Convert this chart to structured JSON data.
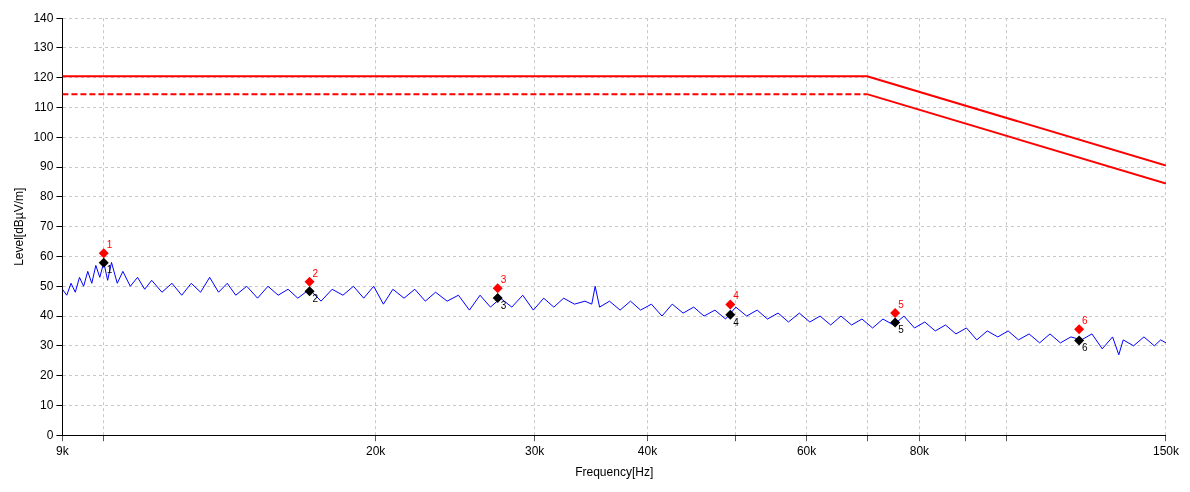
{
  "chart_data": {
    "type": "line",
    "xlabel": "Frequency[Hz]",
    "ylabel": "Level[dBµV/m]",
    "log": "x",
    "grid": true,
    "legend": false,
    "xlim": [
      9000,
      150000
    ],
    "xticks": [
      {
        "value": 9000,
        "label": "9k"
      },
      {
        "value": 10000,
        "label": null
      },
      {
        "value": 20000,
        "label": "20k"
      },
      {
        "value": 30000,
        "label": "30k"
      },
      {
        "value": 40000,
        "label": "40k"
      },
      {
        "value": 50000,
        "label": null
      },
      {
        "value": 60000,
        "label": "60k"
      },
      {
        "value": 70000,
        "label": null
      },
      {
        "value": 80000,
        "label": "80k"
      },
      {
        "value": 90000,
        "label": null
      },
      {
        "value": 100000,
        "label": null
      },
      {
        "value": 150000,
        "label": "150k"
      }
    ],
    "ylim": [
      0,
      140
    ],
    "yticks": [
      0,
      10,
      20,
      30,
      40,
      50,
      60,
      70,
      80,
      90,
      100,
      110,
      120,
      130,
      140
    ],
    "series": [
      {
        "color": "#0000ff",
        "line_style": "solid",
        "x": [
          9000,
          9100,
          9200,
          9300,
          9400,
          9500,
          9600,
          9700,
          9800,
          9900,
          10000,
          10100,
          10200,
          10350,
          10500,
          10700,
          10900,
          11100,
          11300,
          11600,
          11900,
          12200,
          12500,
          12800,
          13100,
          13400,
          13700,
          14000,
          14400,
          14800,
          15200,
          15600,
          16000,
          16400,
          16900,
          17400,
          17900,
          18400,
          18900,
          19400,
          19900,
          20400,
          20900,
          21500,
          22100,
          22700,
          23300,
          24000,
          24700,
          25400,
          26100,
          26800,
          27500,
          28300,
          29100,
          29900,
          30700,
          31500,
          32300,
          33200,
          34100,
          34700,
          35000,
          35400,
          36300,
          37300,
          38300,
          39300,
          40400,
          41500,
          42600,
          43800,
          45000,
          46200,
          47500,
          48800,
          50100,
          51500,
          52900,
          54300,
          55800,
          57300,
          58900,
          60500,
          62100,
          63800,
          65500,
          67300,
          69100,
          71000,
          72900,
          74900,
          76900,
          79000,
          81100,
          83300,
          85500,
          87800,
          90200,
          92600,
          95100,
          97700,
          100300,
          103000,
          105800,
          108700,
          111600,
          114600,
          117700,
          120900,
          124200,
          127500,
          130900,
          133000,
          134500,
          138100,
          141800,
          145600,
          148000,
          150000
        ],
        "values": [
          49,
          47,
          51,
          48,
          53,
          50,
          55,
          51,
          57,
          53,
          58,
          52,
          58,
          51,
          55,
          50,
          53,
          49,
          52,
          48,
          51,
          47,
          51,
          48,
          53,
          48,
          51,
          47,
          50,
          46,
          50,
          47,
          49,
          46,
          49,
          45,
          49,
          47,
          50,
          46,
          50,
          44,
          49,
          46,
          49,
          45,
          48,
          45,
          47,
          42,
          47,
          43,
          46,
          43,
          47,
          42,
          46,
          43,
          46,
          44,
          45,
          44,
          50,
          43,
          45,
          42,
          45,
          42,
          44,
          40,
          44,
          41,
          43,
          40,
          42,
          39,
          43,
          40,
          42,
          39,
          41,
          38,
          41,
          38,
          40,
          37,
          40,
          37,
          39,
          36,
          39,
          37,
          40,
          36,
          38,
          35,
          37,
          34,
          36,
          32,
          35,
          33,
          35,
          32,
          34,
          31,
          34,
          31,
          33,
          32,
          34,
          29,
          33,
          27,
          32,
          30,
          33,
          30,
          32,
          31
        ]
      },
      {
        "color": "#ff0000",
        "line_style": "solid",
        "x": [
          9000,
          70000,
          150000
        ],
        "values": [
          120.5,
          120.5,
          90.5
        ]
      },
      {
        "color": "#ff0000",
        "line_style": "dashed",
        "x": [
          9000,
          70000
        ],
        "values": [
          114.5,
          114.5
        ]
      },
      {
        "color": "#ff0000",
        "line_style": "solid",
        "x": [
          70000,
          150000
        ],
        "values": [
          114.5,
          84.5
        ]
      },
      {
        "type": "scatter",
        "color": "#ff0000",
        "marker": "diamond",
        "x": [
          10000,
          16900,
          27300,
          49400,
          75200,
          120200
        ],
        "values": [
          61.1,
          51.5,
          49.3,
          43.9,
          41.0,
          35.6
        ]
      },
      {
        "type": "scatter",
        "color": "#000000",
        "marker": "diamond",
        "x": [
          10000,
          16900,
          27300,
          49400,
          75200,
          120200
        ],
        "values": [
          57.9,
          48.3,
          46.1,
          40.4,
          37.8,
          31.8
        ]
      }
    ],
    "annotations": [
      {
        "text": "1",
        "x": 10000,
        "y": 61.1
      },
      {
        "text": "2",
        "x": 16900,
        "y": 51.5
      },
      {
        "text": "3",
        "x": 27300,
        "y": 49.3
      },
      {
        "text": "4",
        "x": 49400,
        "y": 43.9
      },
      {
        "text": "5",
        "x": 75200,
        "y": 41.0
      },
      {
        "text": "6",
        "x": 120200,
        "y": 35.6
      },
      {
        "text": "1",
        "x": 10000,
        "y": 57.9
      },
      {
        "text": "2",
        "x": 16900,
        "y": 48.3
      },
      {
        "text": "3",
        "x": 27300,
        "y": 46.1
      },
      {
        "text": "4",
        "x": 49400,
        "y": 40.4
      },
      {
        "text": "5",
        "x": 75200,
        "y": 37.8
      },
      {
        "text": "6",
        "x": 120200,
        "y": 31.8
      }
    ]
  }
}
